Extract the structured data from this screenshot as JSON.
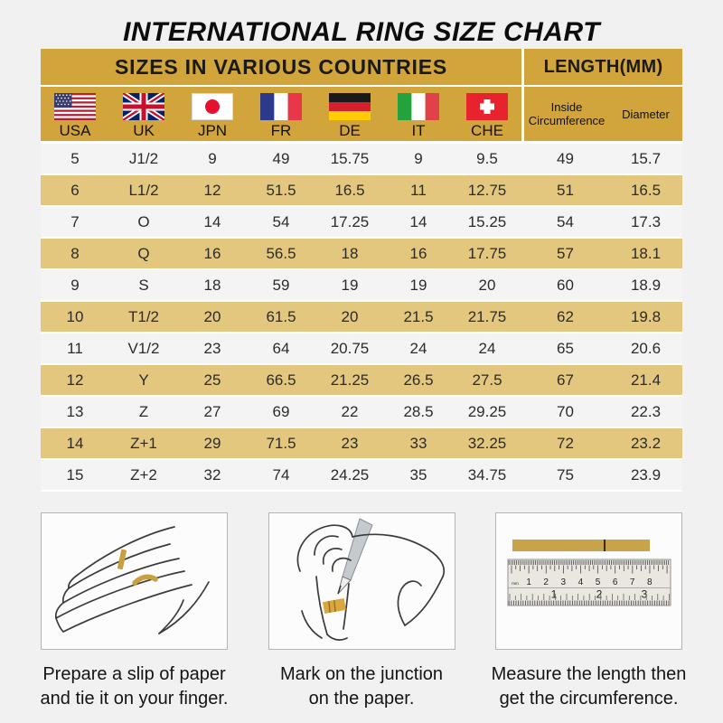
{
  "page": {
    "title": "INTERNATIONAL RING SIZE CHART"
  },
  "table": {
    "header_left": "SIZES IN VARIOUS COUNTRIES",
    "header_right": "LENGTH(MM)",
    "countries": [
      {
        "code": "USA",
        "flag": "usa-flag"
      },
      {
        "code": "UK",
        "flag": "uk-flag"
      },
      {
        "code": "JPN",
        "flag": "japan-flag"
      },
      {
        "code": "FR",
        "flag": "france-flag"
      },
      {
        "code": "DE",
        "flag": "germany-flag"
      },
      {
        "code": "IT",
        "flag": "italy-flag"
      },
      {
        "code": "CHE",
        "flag": "switzerland-flag"
      }
    ],
    "length_columns": [
      "Inside Circumference",
      "Diameter"
    ],
    "rows": [
      [
        "5",
        "J1/2",
        "9",
        "49",
        "15.75",
        "9",
        "9.5",
        "49",
        "15.7"
      ],
      [
        "6",
        "L1/2",
        "12",
        "51.5",
        "16.5",
        "11",
        "12.75",
        "51",
        "16.5"
      ],
      [
        "7",
        "O",
        "14",
        "54",
        "17.25",
        "14",
        "15.25",
        "54",
        "17.3"
      ],
      [
        "8",
        "Q",
        "16",
        "56.5",
        "18",
        "16",
        "17.75",
        "57",
        "18.1"
      ],
      [
        "9",
        "S",
        "18",
        "59",
        "19",
        "19",
        "20",
        "60",
        "18.9"
      ],
      [
        "10",
        "T1/2",
        "20",
        "61.5",
        "20",
        "21.5",
        "21.75",
        "62",
        "19.8"
      ],
      [
        "11",
        "V1/2",
        "23",
        "64",
        "20.75",
        "24",
        "24",
        "65",
        "20.6"
      ],
      [
        "12",
        "Y",
        "25",
        "66.5",
        "21.25",
        "26.5",
        "27.5",
        "67",
        "21.4"
      ],
      [
        "13",
        "Z",
        "27",
        "69",
        "22",
        "28.5",
        "29.25",
        "70",
        "22.3"
      ],
      [
        "14",
        "Z+1",
        "29",
        "71.5",
        "23",
        "33",
        "32.25",
        "72",
        "23.2"
      ],
      [
        "15",
        "Z+2",
        "32",
        "74",
        "24.25",
        "35",
        "34.75",
        "75",
        "23.9"
      ]
    ]
  },
  "instructions": [
    {
      "caption_line1": "Prepare a slip of paper",
      "caption_line2": "and tie it on your finger.",
      "illustration": "hand-with-paper-strip"
    },
    {
      "caption_line1": "Mark on the junction",
      "caption_line2": "on the paper.",
      "illustration": "pen-marking-paper"
    },
    {
      "caption_line1": "Measure the length then",
      "caption_line2": "get the circumference.",
      "illustration": "ruler-measuring-strip",
      "ruler": {
        "unit_label": "mm",
        "cm_numbers": [
          "1",
          "2",
          "3",
          "4",
          "5",
          "6",
          "7",
          "8"
        ],
        "inch_numbers": [
          "1",
          "2",
          "3"
        ]
      }
    }
  ],
  "colors": {
    "gold_header": "#D1A43C",
    "gold_band": "#E3C77E",
    "gold_strip": "#C9A349",
    "row_light": "#F4F4F4",
    "page_bg": "#F1F1F1"
  }
}
